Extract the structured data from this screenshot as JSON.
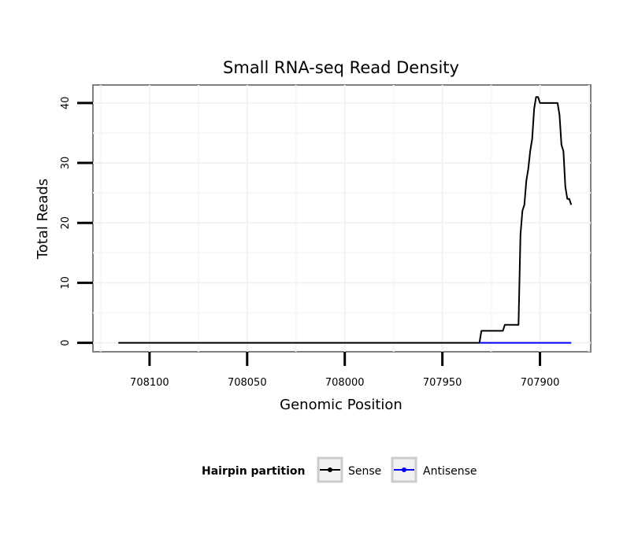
{
  "chart_data": {
    "type": "line",
    "title": "Small RNA-seq Read Density",
    "xlabel": "Genomic Position",
    "ylabel": "Total Reads",
    "x_reversed": true,
    "xlim": [
      708129,
      707874
    ],
    "ylim": [
      -1.5,
      43
    ],
    "x_ticks": [
      708100,
      708050,
      708000,
      707950,
      707900
    ],
    "y_ticks": [
      0,
      10,
      20,
      30,
      40
    ],
    "grid": true,
    "legend": {
      "title": "Hairpin partition",
      "position": "bottom",
      "entries": [
        "Sense",
        "Antisense"
      ]
    },
    "series": [
      {
        "name": "Sense",
        "color": "#000000",
        "points": [
          [
            708116,
            0
          ],
          [
            707931,
            0
          ],
          [
            707930,
            2
          ],
          [
            707919,
            2
          ],
          [
            707918,
            3
          ],
          [
            707911,
            3
          ],
          [
            707910,
            18
          ],
          [
            707909,
            22
          ],
          [
            707908,
            23
          ],
          [
            707907,
            27
          ],
          [
            707906,
            29
          ],
          [
            707905,
            32
          ],
          [
            707904,
            34
          ],
          [
            707903,
            39
          ],
          [
            707902,
            41
          ],
          [
            707901,
            41
          ],
          [
            707900,
            40
          ],
          [
            707891,
            40
          ],
          [
            707890,
            38
          ],
          [
            707889,
            33
          ],
          [
            707888,
            32
          ],
          [
            707887,
            26
          ],
          [
            707886,
            24
          ],
          [
            707885,
            24
          ],
          [
            707884,
            23
          ]
        ]
      },
      {
        "name": "Antisense",
        "color": "#0000ff",
        "points": [
          [
            707931,
            0
          ],
          [
            707884,
            0
          ]
        ]
      }
    ]
  }
}
